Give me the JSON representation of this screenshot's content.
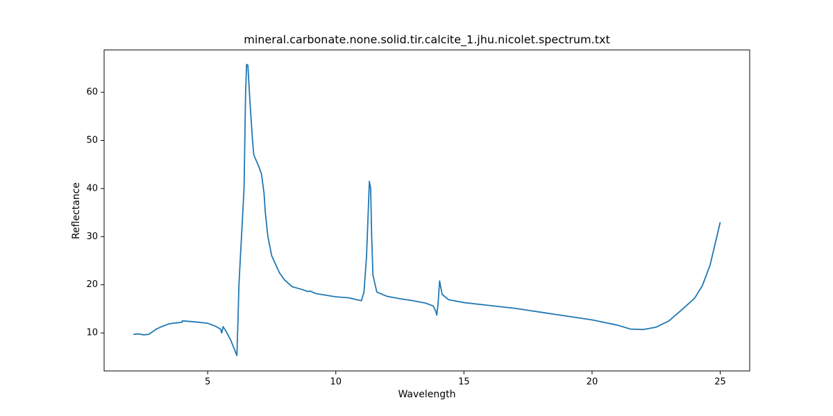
{
  "chart_data": {
    "type": "line",
    "title": "mineral.carbonate.none.solid.tir.calcite_1.jhu.nicolet.spectrum.txt",
    "x_label": "Wavelength",
    "y_label": "Reflectance",
    "x": [
      2.1,
      2.3,
      2.5,
      2.7,
      3.0,
      3.2,
      3.5,
      3.8,
      4.0,
      4.01,
      4.5,
      5.0,
      5.3,
      5.5,
      5.55,
      5.6,
      5.7,
      5.9,
      6.05,
      6.14,
      6.18,
      6.22,
      6.3,
      6.42,
      6.48,
      6.52,
      6.57,
      6.65,
      6.75,
      6.8,
      7.0,
      7.1,
      7.2,
      7.25,
      7.35,
      7.5,
      7.8,
      8.0,
      8.3,
      8.7,
      8.9,
      9.0,
      9.2,
      10.0,
      10.5,
      10.9,
      11.0,
      11.1,
      11.2,
      11.31,
      11.36,
      11.4,
      11.45,
      11.6,
      12.0,
      12.5,
      13.0,
      13.5,
      13.8,
      13.9,
      13.94,
      13.99,
      14.05,
      14.15,
      14.4,
      15.0,
      16.0,
      17.0,
      18.0,
      19.0,
      20.0,
      21.0,
      21.5,
      22.0,
      22.5,
      23.0,
      23.5,
      24.0,
      24.3,
      24.6,
      25.0
    ],
    "series": [
      {
        "name": "calcite",
        "color": "#1f77b4",
        "values": [
          9.7,
          9.8,
          9.6,
          9.7,
          10.8,
          11.3,
          11.9,
          12.1,
          12.2,
          12.5,
          12.3,
          12.0,
          11.4,
          10.8,
          10.0,
          11.3,
          10.5,
          8.5,
          6.5,
          5.3,
          12,
          20,
          28,
          40,
          60,
          65.8,
          65.6,
          58,
          50,
          47,
          44.5,
          43,
          39,
          35,
          30,
          26,
          22.5,
          21,
          19.6,
          19.0,
          18.6,
          18.7,
          18.2,
          17.5,
          17.3,
          16.8,
          16.7,
          18.5,
          26,
          41.5,
          40,
          30,
          22,
          18.5,
          17.6,
          17.1,
          16.7,
          16.2,
          15.6,
          14.5,
          13.7,
          16,
          20.8,
          18,
          16.9,
          16.3,
          15.7,
          15.1,
          14.3,
          13.5,
          12.7,
          11.6,
          10.8,
          10.7,
          11.2,
          12.5,
          14.8,
          17.2,
          19.8,
          24,
          33.0
        ]
      }
    ],
    "xlim": [
      0.96,
      26.15
    ],
    "ylim": [
      2.1,
      68.8
    ],
    "xticks": [
      5,
      10,
      15,
      20,
      25
    ],
    "yticks": [
      10,
      20,
      30,
      40,
      50,
      60
    ],
    "grid": false
  }
}
